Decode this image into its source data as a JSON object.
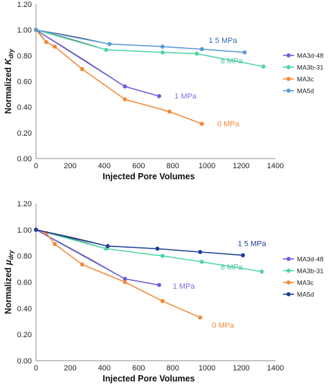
{
  "chart_data": [
    {
      "type": "line",
      "ylabel_prefix": "Normalized ",
      "ylabel_symbol": "K",
      "ylabel_subscript": "dry",
      "xlabel": "Injected Pore Volumes",
      "xlim": [
        0,
        1400
      ],
      "ylim": [
        0,
        1.2
      ],
      "xticks": [
        "0",
        "200",
        "400",
        "600",
        "800",
        "1000",
        "1200",
        "1400"
      ],
      "yticks": [
        "0.00",
        "0.20",
        "0.40",
        "0.60",
        "0.80",
        "1.00",
        "1.20"
      ],
      "grid": false,
      "legend_position": "right",
      "series": [
        {
          "name": "MA3d-48",
          "color": "#6a5fd9",
          "x": [
            0,
            520,
            720
          ],
          "y": [
            1.0,
            0.56,
            0.485
          ]
        },
        {
          "name": "MA3b-31",
          "color": "#4fd6a6",
          "x": [
            0,
            410,
            740,
            940,
            1330
          ],
          "y": [
            1.0,
            0.845,
            0.825,
            0.815,
            0.715
          ]
        },
        {
          "name": "MA3c",
          "color": "#f08a3a",
          "x": [
            0,
            60,
            110,
            270,
            520,
            780,
            970
          ],
          "y": [
            1.0,
            0.905,
            0.87,
            0.695,
            0.46,
            0.365,
            0.27
          ]
        },
        {
          "name": "MA5d",
          "color": "#5b9bd5",
          "x": [
            0,
            430,
            740,
            970,
            1220
          ],
          "y": [
            1.0,
            0.89,
            0.87,
            0.85,
            0.825
          ]
        }
      ],
      "annotations": [
        {
          "text": "1 5 MPa",
          "color": "#2b6cb0",
          "x": 1010,
          "y": 0.9
        },
        {
          "text": "8 MPa",
          "color": "#3cc48f",
          "x": 1080,
          "y": 0.74
        },
        {
          "text": "1 MPa",
          "color": "#7a6fdc",
          "x": 810,
          "y": 0.465
        },
        {
          "text": "0 MPa",
          "color": "#f08a3a",
          "x": 1060,
          "y": 0.25
        }
      ]
    },
    {
      "type": "line",
      "ylabel_prefix": "Normalized ",
      "ylabel_symbol": "μ",
      "ylabel_subscript": "dry",
      "xlabel": "Injected Pore Volumes",
      "xlim": [
        0,
        1400
      ],
      "ylim": [
        0,
        1.2
      ],
      "xticks": [
        "0",
        "200",
        "400",
        "600",
        "800",
        "1000",
        "1200",
        "1400"
      ],
      "yticks": [
        "0.00",
        "0.20",
        "0.40",
        "0.60",
        "0.80",
        "1.00",
        "1.20"
      ],
      "grid": false,
      "legend_position": "right",
      "series": [
        {
          "name": "MA3d-48",
          "color": "#6a5fd9",
          "x": [
            0,
            520,
            720
          ],
          "y": [
            1.0,
            0.625,
            0.578
          ]
        },
        {
          "name": "MA3b-31",
          "color": "#4fd6a6",
          "x": [
            0,
            410,
            740,
            970,
            1320
          ],
          "y": [
            1.0,
            0.855,
            0.8,
            0.755,
            0.68
          ]
        },
        {
          "name": "MA3c",
          "color": "#f08a3a",
          "x": [
            0,
            60,
            110,
            270,
            520,
            740,
            960
          ],
          "y": [
            1.0,
            0.975,
            0.89,
            0.735,
            0.6,
            0.455,
            0.33
          ]
        },
        {
          "name": "MA5d",
          "color": "#1f3f9a",
          "x": [
            0,
            420,
            710,
            960,
            1210
          ],
          "y": [
            1.0,
            0.875,
            0.855,
            0.83,
            0.805
          ]
        }
      ],
      "annotations": [
        {
          "text": "1 5 MPa",
          "color": "#1f3f9a",
          "x": 1180,
          "y": 0.875
        },
        {
          "text": "8 MPa",
          "color": "#3cc48f",
          "x": 1080,
          "y": 0.695
        },
        {
          "text": "1 MPa",
          "color": "#7a6fdc",
          "x": 800,
          "y": 0.55
        },
        {
          "text": "0 MPa",
          "color": "#f08a3a",
          "x": 1030,
          "y": 0.25
        }
      ]
    }
  ]
}
